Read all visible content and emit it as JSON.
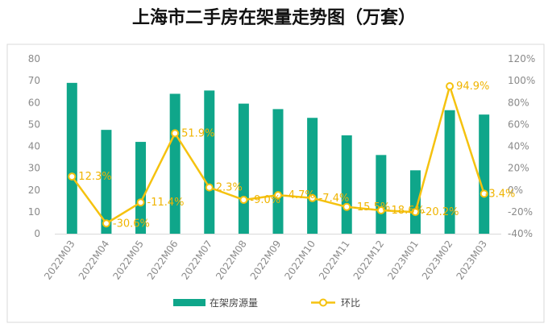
{
  "chart_data": {
    "type": "bar+line",
    "title": "上海市二手房在架量走势图（万套）",
    "categories": [
      "2022M03",
      "2022M04",
      "2022M05",
      "2022M06",
      "2022M07",
      "2022M08",
      "2022M09",
      "2022M10",
      "2022M11",
      "2022M12",
      "2023M01",
      "2023M02",
      "2023M03"
    ],
    "series": [
      {
        "name": "在架房源量",
        "type": "bar",
        "axis": "left",
        "values": [
          69,
          47.5,
          42,
          64,
          65.5,
          59.5,
          57,
          53,
          45,
          36,
          29,
          56.5,
          54.5
        ]
      },
      {
        "name": "环比",
        "type": "line",
        "axis": "right",
        "values": [
          12.3,
          -30.6,
          -11.4,
          51.9,
          2.3,
          -9.0,
          -4.7,
          -7.4,
          -15.5,
          -18.6,
          -20.2,
          94.9,
          -3.4
        ],
        "labels": [
          "12.3%",
          "-30.6%",
          "-11.4%",
          "51.9%",
          "2.3%",
          "-9.0%",
          "-4.7%",
          "-7.4%",
          "-15.5%",
          "-18.6%",
          "-20.2%",
          "94.9%",
          "-3.4%"
        ]
      }
    ],
    "y_left": {
      "min": 0,
      "max": 80,
      "ticks": [
        "0",
        "10",
        "20",
        "30",
        "40",
        "50",
        "60",
        "70",
        "80"
      ]
    },
    "y_right": {
      "min": -40,
      "max": 120,
      "ticks": [
        "-40%",
        "-20%",
        "0%",
        "20%",
        "40%",
        "60%",
        "80%",
        "100%",
        "120%"
      ]
    },
    "legend": {
      "position": "bottom",
      "entries": [
        "在架房源量",
        "环比"
      ]
    },
    "colors": {
      "bar": "#0fa68a",
      "line": "#f5c20f",
      "marker_fill": "#ffffff",
      "label": "#f0b400"
    },
    "grid": false
  }
}
